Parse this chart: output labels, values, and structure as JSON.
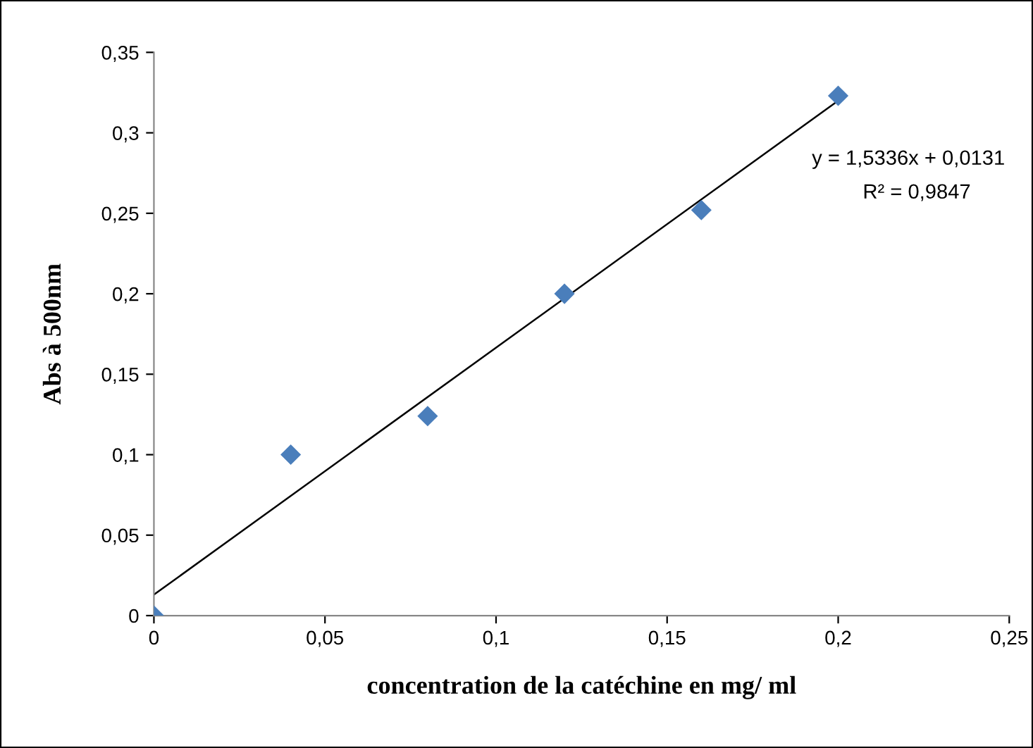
{
  "chart_data": {
    "type": "scatter",
    "xlabel": "concentration de la catéchine en mg/ ml",
    "ylabel": "Abs à 500nm",
    "xlim": [
      0,
      0.25
    ],
    "ylim": [
      0,
      0.35
    ],
    "xticks": [
      {
        "value": 0,
        "label": "0"
      },
      {
        "value": 0.05,
        "label": "0,05"
      },
      {
        "value": 0.1,
        "label": "0,1"
      },
      {
        "value": 0.15,
        "label": "0,15"
      },
      {
        "value": 0.2,
        "label": "0,2"
      },
      {
        "value": 0.25,
        "label": "0,25"
      }
    ],
    "yticks": [
      {
        "value": 0,
        "label": "0"
      },
      {
        "value": 0.05,
        "label": "0,05"
      },
      {
        "value": 0.1,
        "label": "0,1"
      },
      {
        "value": 0.15,
        "label": "0,15"
      },
      {
        "value": 0.2,
        "label": "0,2"
      },
      {
        "value": 0.25,
        "label": "0,25"
      },
      {
        "value": 0.3,
        "label": "0,3"
      },
      {
        "value": 0.35,
        "label": "0,35"
      }
    ],
    "series": [
      {
        "color": "#4a7ebb",
        "marker": "diamond",
        "x": [
          0,
          0.04,
          0.08,
          0.12,
          0.16,
          0.2
        ],
        "values": [
          0,
          0.1,
          0.124,
          0.2,
          0.252,
          0.323
        ]
      },
      {
        "type": "line",
        "color": "#000000",
        "x": [
          0,
          0.2
        ],
        "values": [
          0.013,
          0.32
        ]
      }
    ],
    "annotations": [
      "y = 1,5336x + 0,0131",
      "R² = 0,9847"
    ],
    "grid": false
  }
}
